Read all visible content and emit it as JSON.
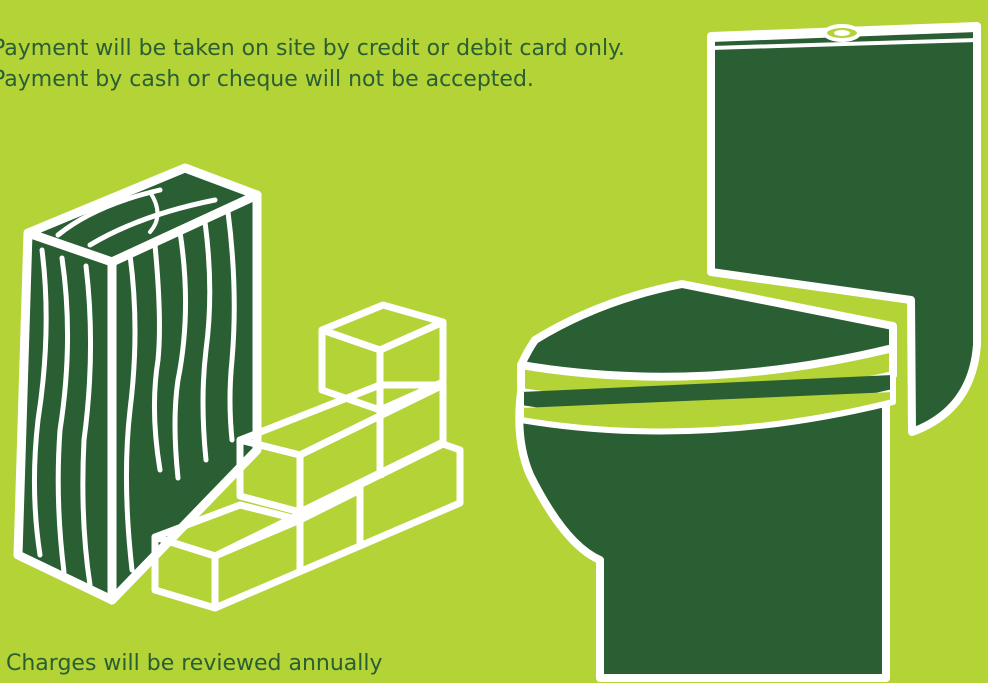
{
  "notice": {
    "payment_text": "Payment will be taken on site by credit or debit card only. Payment by cash or cheque will not be accepted.",
    "charges_text": "Charges will be reviewed annually"
  },
  "icons": {
    "wood": "timber-plank-icon",
    "bricks": "brick-wall-icon",
    "toilet": "toilet-icon"
  },
  "colors": {
    "background": "#b3d336",
    "accent_dark_green": "#2a5e33",
    "outline": "#ffffff"
  }
}
